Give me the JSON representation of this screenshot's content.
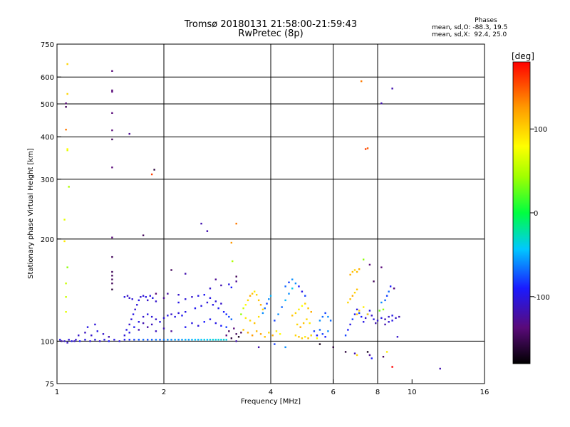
{
  "header": {
    "title_line1": "Tromsø 20180131 21:58:00-21:59:43",
    "title_line2": "RwPretec (8p)"
  },
  "phases": {
    "title": "Phases",
    "line1": "mean, sd,O: -88.3, 19.5",
    "line2": "mean, sd,X:  92.4, 25.0"
  },
  "colorbar": {
    "label": "[deg]",
    "ticks": [
      {
        "value": 100,
        "label": "100"
      },
      {
        "value": 0,
        "label": "0"
      },
      {
        "value": -100,
        "label": "-100"
      }
    ],
    "range": [
      -180,
      180
    ]
  },
  "chart_data": {
    "type": "scatter",
    "title": "",
    "xlabel": "Frequency [MHz]",
    "ylabel": "Stationary phase Virtual Height [km]",
    "x_scale": "log",
    "y_scale": "log",
    "xlim": [
      1,
      16
    ],
    "ylim": [
      75,
      750
    ],
    "x_ticks": [
      1,
      2,
      4,
      6,
      8,
      10,
      16
    ],
    "y_ticks": [
      75,
      100,
      200,
      300,
      400,
      500,
      600,
      750
    ],
    "grid_x": [
      2,
      4,
      6,
      8
    ],
    "grid_y": [
      100,
      200,
      300,
      400,
      500,
      600
    ],
    "color_meaning": "phase [deg]",
    "points": [
      [
        1.02,
        101,
        -100
      ],
      [
        1.05,
        100,
        -110
      ],
      [
        1.08,
        101,
        -105
      ],
      [
        1.1,
        100,
        -100
      ],
      [
        1.13,
        101,
        -110
      ],
      [
        1.16,
        100,
        -95
      ],
      [
        1.2,
        101,
        -100
      ],
      [
        1.24,
        100,
        -105
      ],
      [
        1.28,
        101,
        -100
      ],
      [
        1.32,
        100,
        -110
      ],
      [
        1.36,
        101,
        -100
      ],
      [
        1.4,
        100,
        -95
      ],
      [
        1.45,
        101,
        -100
      ],
      [
        1.5,
        100,
        -105
      ],
      [
        1.55,
        101,
        -90
      ],
      [
        1.6,
        101,
        -85
      ],
      [
        1.65,
        101,
        -80
      ],
      [
        1.7,
        101,
        -75
      ],
      [
        1.75,
        101,
        -70
      ],
      [
        1.8,
        101,
        -75
      ],
      [
        1.85,
        101,
        -70
      ],
      [
        1.9,
        101,
        -65
      ],
      [
        1.95,
        101,
        -70
      ],
      [
        2.0,
        101,
        -65
      ],
      [
        2.05,
        101,
        -60
      ],
      [
        2.1,
        101,
        -60
      ],
      [
        2.15,
        101,
        -55
      ],
      [
        2.2,
        101,
        -60
      ],
      [
        2.25,
        101,
        -55
      ],
      [
        2.3,
        101,
        -50
      ],
      [
        2.35,
        101,
        -55
      ],
      [
        2.4,
        101,
        -50
      ],
      [
        2.45,
        101,
        -45
      ],
      [
        2.5,
        101,
        -50
      ],
      [
        2.55,
        101,
        -45
      ],
      [
        2.6,
        101,
        -40
      ],
      [
        2.65,
        101,
        -45
      ],
      [
        2.7,
        101,
        -40
      ],
      [
        2.75,
        101,
        -35
      ],
      [
        2.8,
        101,
        -40
      ],
      [
        2.85,
        101,
        -35
      ],
      [
        2.9,
        101,
        -40
      ],
      [
        2.95,
        101,
        -35
      ],
      [
        3.0,
        101,
        -40
      ],
      [
        1.15,
        104,
        -110
      ],
      [
        1.2,
        106,
        -115
      ],
      [
        1.25,
        104,
        -110
      ],
      [
        1.3,
        107,
        -100
      ],
      [
        1.35,
        105,
        -110
      ],
      [
        1.4,
        103,
        -120
      ],
      [
        1.22,
        110,
        -100
      ],
      [
        1.28,
        112,
        -105
      ],
      [
        1.55,
        104,
        -105
      ],
      [
        1.57,
        108,
        -100
      ],
      [
        1.6,
        112,
        -110
      ],
      [
        1.62,
        116,
        -105
      ],
      [
        1.64,
        120,
        -100
      ],
      [
        1.66,
        124,
        -110
      ],
      [
        1.68,
        128,
        -105
      ],
      [
        1.7,
        132,
        -100
      ],
      [
        1.72,
        135,
        -110
      ],
      [
        1.75,
        136,
        -105
      ],
      [
        1.78,
        135,
        -100
      ],
      [
        1.8,
        132,
        -110
      ],
      [
        1.83,
        136,
        -105
      ],
      [
        1.86,
        134,
        -100
      ],
      [
        1.9,
        131,
        -110
      ],
      [
        1.55,
        135,
        -100
      ],
      [
        1.58,
        136,
        -115
      ],
      [
        1.6,
        134,
        -110
      ],
      [
        1.63,
        133,
        -105
      ],
      [
        1.6,
        106,
        -100
      ],
      [
        1.65,
        110,
        -95
      ],
      [
        1.7,
        114,
        -100
      ],
      [
        1.75,
        118,
        -110
      ],
      [
        1.8,
        120,
        -100
      ],
      [
        1.85,
        118,
        -105
      ],
      [
        1.9,
        116,
        -110
      ],
      [
        1.95,
        114,
        -100
      ],
      [
        2.0,
        117,
        -105
      ],
      [
        2.05,
        119,
        -100
      ],
      [
        2.1,
        120,
        -110
      ],
      [
        2.15,
        118,
        -100
      ],
      [
        2.2,
        121,
        -105
      ],
      [
        2.25,
        119,
        -95
      ],
      [
        2.3,
        122,
        -100
      ],
      [
        1.7,
        108,
        -120
      ],
      [
        1.8,
        110,
        -125
      ],
      [
        1.9,
        107,
        -115
      ],
      [
        2.0,
        109,
        -120
      ],
      [
        2.1,
        107,
        -130
      ],
      [
        1.75,
        113,
        -120
      ],
      [
        1.85,
        112,
        -115
      ],
      [
        2.2,
        130,
        -100
      ],
      [
        2.3,
        133,
        -105
      ],
      [
        2.4,
        135,
        -110
      ],
      [
        2.5,
        136,
        -100
      ],
      [
        2.6,
        137,
        -95
      ],
      [
        2.7,
        134,
        -100
      ],
      [
        2.8,
        131,
        -105
      ],
      [
        2.9,
        129,
        -110
      ],
      [
        2.45,
        125,
        -95
      ],
      [
        2.55,
        127,
        -100
      ],
      [
        2.65,
        130,
        -105
      ],
      [
        2.75,
        128,
        -100
      ],
      [
        2.85,
        125,
        -95
      ],
      [
        2.95,
        122,
        -90
      ],
      [
        3.0,
        120,
        -85
      ],
      [
        3.05,
        118,
        -80
      ],
      [
        3.1,
        116,
        -70
      ],
      [
        2.3,
        110,
        -95
      ],
      [
        2.4,
        113,
        -100
      ],
      [
        2.5,
        111,
        -105
      ],
      [
        2.6,
        114,
        -90
      ],
      [
        2.7,
        116,
        -95
      ],
      [
        2.8,
        113,
        -100
      ],
      [
        2.9,
        111,
        -90
      ],
      [
        3.0,
        110,
        -80
      ],
      [
        2.0,
        134,
        -130
      ],
      [
        2.05,
        138,
        -125
      ],
      [
        1.9,
        138,
        -140
      ],
      [
        2.2,
        137,
        -110
      ],
      [
        2.7,
        143,
        -110
      ],
      [
        2.9,
        146,
        -120
      ],
      [
        3.05,
        147,
        -100
      ],
      [
        3.1,
        144,
        -90
      ],
      [
        3.2,
        150,
        -130
      ],
      [
        3.0,
        104,
        -140
      ],
      [
        3.05,
        107,
        -150
      ],
      [
        3.1,
        102,
        -160
      ],
      [
        3.15,
        109,
        -140
      ],
      [
        3.2,
        105,
        -150
      ],
      [
        3.25,
        103,
        -170
      ],
      [
        3.3,
        106,
        -150
      ],
      [
        3.2,
        100,
        -120
      ],
      [
        3.3,
        120,
        40
      ],
      [
        3.35,
        125,
        60
      ],
      [
        3.4,
        128,
        80
      ],
      [
        3.45,
        132,
        100
      ],
      [
        3.5,
        136,
        120
      ],
      [
        3.55,
        138,
        110
      ],
      [
        3.6,
        140,
        90
      ],
      [
        3.65,
        137,
        100
      ],
      [
        3.7,
        132,
        110
      ],
      [
        3.75,
        128,
        120
      ],
      [
        3.8,
        124,
        100
      ],
      [
        3.4,
        117,
        90
      ],
      [
        3.5,
        115,
        100
      ],
      [
        3.6,
        113,
        110
      ],
      [
        3.7,
        118,
        95
      ],
      [
        3.8,
        121,
        -60
      ],
      [
        3.85,
        125,
        -70
      ],
      [
        3.9,
        129,
        -80
      ],
      [
        3.95,
        133,
        -60
      ],
      [
        4.0,
        136,
        -50
      ],
      [
        3.35,
        108,
        110
      ],
      [
        3.45,
        106,
        120
      ],
      [
        3.55,
        104,
        130
      ],
      [
        3.65,
        107,
        115
      ],
      [
        3.75,
        105,
        125
      ],
      [
        3.85,
        103,
        110
      ],
      [
        3.95,
        106,
        100
      ],
      [
        4.05,
        104,
        120
      ],
      [
        4.15,
        107,
        90
      ],
      [
        4.25,
        105,
        80
      ],
      [
        4.1,
        115,
        -80
      ],
      [
        4.2,
        120,
        -60
      ],
      [
        4.3,
        126,
        -70
      ],
      [
        4.4,
        132,
        -50
      ],
      [
        4.5,
        138,
        -60
      ],
      [
        4.6,
        143,
        -40
      ],
      [
        4.7,
        148,
        -60
      ],
      [
        4.8,
        145,
        -90
      ],
      [
        4.9,
        140,
        -100
      ],
      [
        5.0,
        136,
        -80
      ],
      [
        4.4,
        145,
        -70
      ],
      [
        4.5,
        149,
        -80
      ],
      [
        4.6,
        152,
        -60
      ],
      [
        4.6,
        119,
        110
      ],
      [
        4.7,
        121,
        100
      ],
      [
        4.8,
        124,
        90
      ],
      [
        4.9,
        127,
        80
      ],
      [
        5.0,
        129,
        100
      ],
      [
        5.1,
        125,
        110
      ],
      [
        5.2,
        122,
        120
      ],
      [
        4.75,
        112,
        100
      ],
      [
        4.85,
        110,
        120
      ],
      [
        4.95,
        113,
        110
      ],
      [
        5.05,
        116,
        100
      ],
      [
        5.15,
        113,
        90
      ],
      [
        5.2,
        104,
        -100
      ],
      [
        5.3,
        107,
        -80
      ],
      [
        5.4,
        104,
        -90
      ],
      [
        5.5,
        108,
        -70
      ],
      [
        5.6,
        105,
        -80
      ],
      [
        5.7,
        103,
        -90
      ],
      [
        5.8,
        107,
        -60
      ],
      [
        5.5,
        115,
        -60
      ],
      [
        5.6,
        118,
        -70
      ],
      [
        5.7,
        121,
        -80
      ],
      [
        5.8,
        118,
        -60
      ],
      [
        5.9,
        115,
        -70
      ],
      [
        4.7,
        104,
        100
      ],
      [
        4.8,
        103,
        110
      ],
      [
        4.9,
        102,
        105
      ],
      [
        5.0,
        103,
        90
      ],
      [
        5.1,
        102,
        115
      ],
      [
        5.2,
        104,
        95
      ],
      [
        5.4,
        102,
        80
      ],
      [
        6.5,
        104,
        -80
      ],
      [
        6.6,
        108,
        -90
      ],
      [
        6.7,
        112,
        -100
      ],
      [
        6.8,
        116,
        -80
      ],
      [
        6.9,
        120,
        -90
      ],
      [
        7.0,
        124,
        -100
      ],
      [
        7.1,
        121,
        -80
      ],
      [
        7.2,
        118,
        -90
      ],
      [
        7.3,
        114,
        -100
      ],
      [
        7.4,
        117,
        -110
      ],
      [
        7.5,
        120,
        -90
      ],
      [
        7.6,
        123,
        -100
      ],
      [
        7.7,
        119,
        -110
      ],
      [
        7.8,
        116,
        -100
      ],
      [
        7.9,
        113,
        -120
      ],
      [
        8.0,
        115,
        -110
      ],
      [
        8.2,
        117,
        -100
      ],
      [
        8.4,
        116,
        -120
      ],
      [
        8.6,
        118,
        -110
      ],
      [
        8.8,
        119,
        -100
      ],
      [
        6.6,
        130,
        100
      ],
      [
        6.7,
        133,
        110
      ],
      [
        6.8,
        136,
        120
      ],
      [
        6.9,
        139,
        100
      ],
      [
        7.0,
        142,
        110
      ],
      [
        6.7,
        157,
        120
      ],
      [
        6.8,
        160,
        110
      ],
      [
        6.9,
        162,
        100
      ],
      [
        7.0,
        160,
        115
      ],
      [
        7.1,
        163,
        120
      ],
      [
        7.0,
        120,
        110
      ],
      [
        7.1,
        123,
        100
      ],
      [
        7.3,
        126,
        90
      ],
      [
        7.5,
        120,
        100
      ],
      [
        8.1,
        123,
        30
      ],
      [
        8.3,
        124,
        40
      ],
      [
        8.2,
        130,
        -60
      ],
      [
        8.4,
        132,
        -70
      ],
      [
        8.5,
        136,
        -80
      ],
      [
        8.6,
        140,
        -70
      ],
      [
        8.7,
        145,
        -90
      ],
      [
        8.9,
        143,
        -80
      ],
      [
        8.4,
        112,
        -120
      ],
      [
        8.6,
        114,
        -110
      ],
      [
        8.8,
        115,
        -100
      ],
      [
        9.0,
        117,
        -110
      ],
      [
        9.2,
        118,
        -120
      ],
      [
        1.03,
        100,
        -120
      ],
      [
        1.07,
        99,
        -110
      ],
      [
        1.12,
        100,
        -110
      ],
      [
        1.06,
        135,
        60
      ],
      [
        1.06,
        148,
        60
      ],
      [
        1.06,
        122,
        70
      ],
      [
        1.07,
        165,
        40
      ],
      [
        1.05,
        197,
        90
      ],
      [
        1.05,
        228,
        70
      ],
      [
        1.08,
        285,
        50
      ],
      [
        1.07,
        365,
        70
      ],
      [
        1.07,
        368,
        80
      ],
      [
        1.06,
        420,
        140
      ],
      [
        1.06,
        490,
        -150
      ],
      [
        1.07,
        535,
        100
      ],
      [
        1.07,
        655,
        100
      ],
      [
        1.06,
        502,
        -140
      ],
      [
        1.43,
        625,
        -140
      ],
      [
        1.43,
        548,
        -140
      ],
      [
        1.43,
        543,
        -140
      ],
      [
        1.43,
        470,
        -140
      ],
      [
        1.43,
        418,
        -140
      ],
      [
        1.43,
        393,
        -150
      ],
      [
        1.43,
        325,
        -140
      ],
      [
        1.43,
        202,
        -140
      ],
      [
        1.43,
        177,
        -150
      ],
      [
        1.43,
        160,
        -150
      ],
      [
        1.43,
        156,
        -150
      ],
      [
        1.43,
        152,
        -150
      ],
      [
        1.43,
        148,
        -150
      ],
      [
        1.43,
        142,
        -160
      ],
      [
        1.6,
        408,
        -130
      ],
      [
        1.75,
        205,
        -150
      ],
      [
        1.85,
        310,
        160
      ],
      [
        1.88,
        320,
        -160
      ],
      [
        2.55,
        222,
        -120
      ],
      [
        2.65,
        211,
        -120
      ],
      [
        3.1,
        195,
        130
      ],
      [
        3.2,
        222,
        140
      ],
      [
        3.12,
        172,
        50
      ],
      [
        2.1,
        162,
        -150
      ],
      [
        2.3,
        158,
        -120
      ],
      [
        2.8,
        152,
        -130
      ],
      [
        3.2,
        155,
        -150
      ],
      [
        5.5,
        98,
        -170
      ],
      [
        6.0,
        96,
        -160
      ],
      [
        6.5,
        93,
        -160
      ],
      [
        6.9,
        92,
        -120
      ],
      [
        7.0,
        91,
        100
      ],
      [
        7.5,
        93,
        -170
      ],
      [
        7.6,
        91,
        -130
      ],
      [
        7.7,
        89,
        -90
      ],
      [
        8.3,
        90,
        -150
      ],
      [
        8.5,
        93,
        90
      ],
      [
        8.8,
        84,
        180
      ],
      [
        12.0,
        83,
        -120
      ],
      [
        9.1,
        103,
        -110
      ],
      [
        3.7,
        96,
        -120
      ],
      [
        4.1,
        98,
        -80
      ],
      [
        4.4,
        96,
        -60
      ],
      [
        7.2,
        583,
        140
      ],
      [
        8.2,
        502,
        -120
      ],
      [
        8.8,
        555,
        -120
      ],
      [
        7.5,
        370,
        150
      ],
      [
        7.4,
        368,
        160
      ],
      [
        8.2,
        165,
        -140
      ],
      [
        7.8,
        150,
        -150
      ],
      [
        8.9,
        143,
        -140
      ],
      [
        7.3,
        174,
        40
      ],
      [
        7.6,
        168,
        -140
      ]
    ]
  }
}
